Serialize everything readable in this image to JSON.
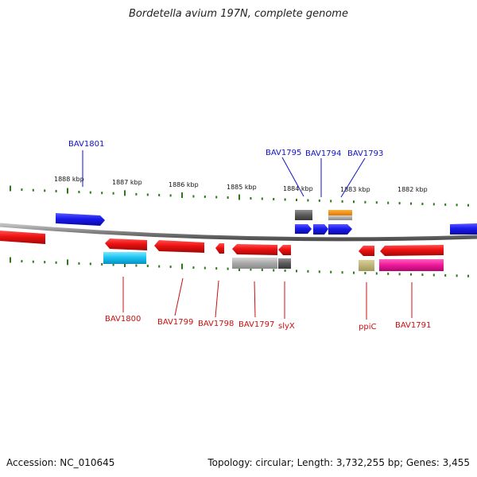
{
  "title": "Bordetella avium 197N, complete genome",
  "footer": {
    "accession": "Accession: NC_010645",
    "summary": "Topology: circular; Length: 3,732,255 bp; Genes: 3,455"
  },
  "scale_labels": [
    "1888 kbp",
    "1887 kbp",
    "1886 kbp",
    "1885 kbp",
    "1884 kbp",
    "1883 kbp",
    "1882 kbp"
  ],
  "top_gene_labels": [
    "BAV1801",
    "BAV1795",
    "BAV1794",
    "BAV1793"
  ],
  "bottom_gene_labels": [
    "BAV1800",
    "BAV1799",
    "BAV1798",
    "BAV1797",
    "slyX",
    "ppiC",
    "BAV1791"
  ],
  "colors": {
    "forward_strand": "#1a1aee",
    "reverse_strand": "#ee1111",
    "backbone": "#808080",
    "ticks": "#2a7a1a",
    "label_top": "#1010c8",
    "label_bottom": "#c81010"
  }
}
